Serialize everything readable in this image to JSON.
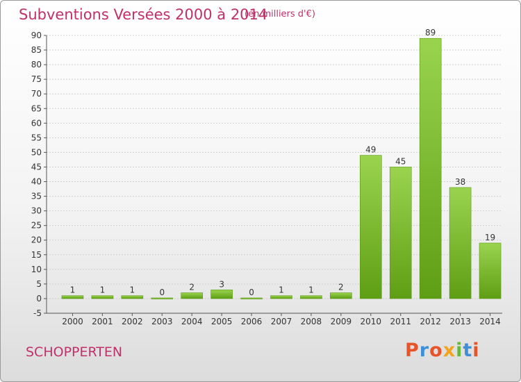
{
  "header": {
    "title": "Subventions Versées 2000 à 2014",
    "unit_note": "(en milliers d'€)"
  },
  "footer": {
    "place": "SCHOPPERTEN",
    "brand": "Proxiti",
    "brand_colors": [
      "#e8542a",
      "#3f8fd8",
      "#e8542a",
      "#f2a51c",
      "#67b83a",
      "#3f8fd8",
      "#e8542a"
    ]
  },
  "chart_data": {
    "type": "bar",
    "title": "Subventions Versées 2000 à 2014",
    "subtitle": "(en milliers d'€)",
    "xlabel": "",
    "ylabel": "",
    "categories": [
      "2000",
      "2001",
      "2002",
      "2003",
      "2004",
      "2005",
      "2006",
      "2007",
      "2008",
      "2009",
      "2010",
      "2011",
      "2012",
      "2013",
      "2014"
    ],
    "values": [
      1,
      1,
      1,
      0,
      2,
      3,
      0,
      1,
      1,
      2,
      49,
      45,
      89,
      38,
      19
    ],
    "value_labels": [
      "1",
      "1",
      "1",
      "0",
      "2",
      "3",
      "0",
      "1",
      "1",
      "2",
      "49",
      "45",
      "89",
      "38",
      "19"
    ],
    "ylim": [
      -5,
      90
    ],
    "yticks": [
      -5,
      0,
      5,
      10,
      15,
      20,
      25,
      30,
      35,
      40,
      45,
      50,
      55,
      60,
      65,
      70,
      75,
      80,
      85,
      90
    ],
    "grid": true,
    "bar_color_light": "#9ad44f",
    "bar_color_dark": "#5e9e14"
  }
}
